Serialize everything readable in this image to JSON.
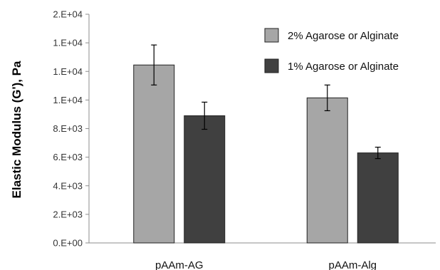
{
  "chart_data": {
    "type": "bar",
    "ylabel": "Elastic Modulus (G'), Pa",
    "xlabel": "",
    "categories": [
      "pAAm-AG",
      "pAAm-Alg"
    ],
    "yticks": [
      "0.E+00",
      "2.E+03",
      "4.E+03",
      "6.E+03",
      "8.E+03",
      "1.E+04",
      "1.E+04",
      "1.E+04",
      "2.E+04"
    ],
    "ylim": [
      0,
      16000
    ],
    "grid": false,
    "legend_position": "top-right",
    "series": [
      {
        "name": "2% Agarose or Alginate",
        "color": "#a6a6a6",
        "values": [
          12450,
          10150
        ],
        "errors": [
          1400,
          900
        ]
      },
      {
        "name": "1% Agarose or Alginate",
        "color": "#404040",
        "values": [
          8900,
          6300
        ],
        "errors": [
          950,
          400
        ]
      }
    ]
  }
}
